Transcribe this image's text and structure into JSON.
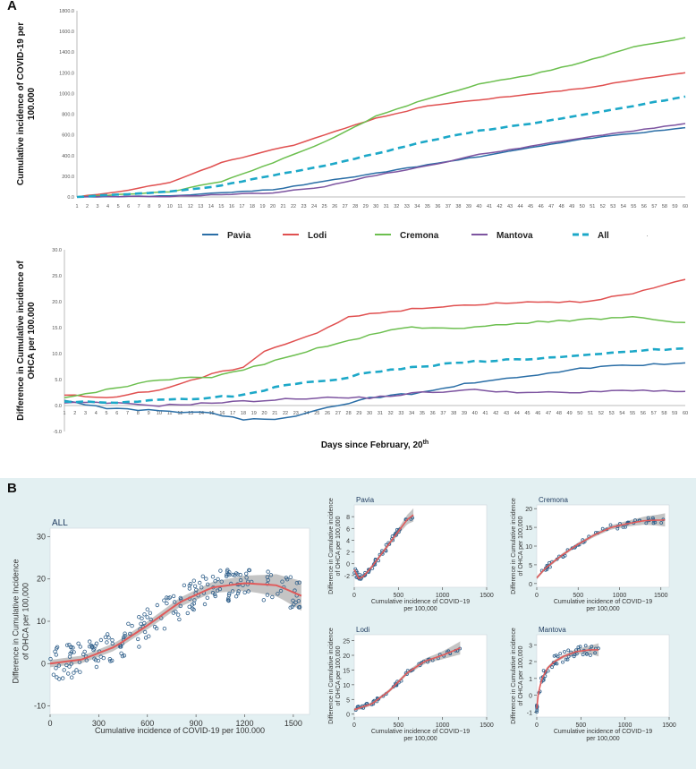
{
  "panel_labels": {
    "a": "A",
    "b": "B"
  },
  "chart_data": [
    {
      "id": "A1",
      "type": "line",
      "title": "",
      "xlabel": "",
      "ylabel": "Cumulative incidence of COVID-19 per 100.000",
      "ylim": [
        0,
        1800
      ],
      "yticks": [
        "0.0",
        "200.0",
        "400.0",
        "600.0",
        "800.0",
        "1000.0",
        "1200.0",
        "1400.0",
        "1600.0",
        "1800.0"
      ],
      "x_start": 1,
      "x_end": 60,
      "series_key_points": {
        "Pavia": [
          [
            1,
            0
          ],
          [
            10,
            10
          ],
          [
            20,
            70
          ],
          [
            30,
            230
          ],
          [
            40,
            390
          ],
          [
            50,
            560
          ],
          [
            60,
            670
          ]
        ],
        "Lodi": [
          [
            1,
            0
          ],
          [
            5,
            50
          ],
          [
            10,
            140
          ],
          [
            15,
            330
          ],
          [
            20,
            460
          ],
          [
            22,
            500
          ],
          [
            25,
            600
          ],
          [
            30,
            760
          ],
          [
            35,
            880
          ],
          [
            40,
            940
          ],
          [
            50,
            1050
          ],
          [
            55,
            1130
          ],
          [
            60,
            1200
          ]
        ],
        "Cremona": [
          [
            1,
            0
          ],
          [
            10,
            50
          ],
          [
            15,
            150
          ],
          [
            20,
            330
          ],
          [
            25,
            530
          ],
          [
            30,
            780
          ],
          [
            35,
            950
          ],
          [
            40,
            1090
          ],
          [
            45,
            1180
          ],
          [
            50,
            1300
          ],
          [
            55,
            1450
          ],
          [
            60,
            1540
          ]
        ],
        "Mantova": [
          [
            1,
            0
          ],
          [
            10,
            5
          ],
          [
            20,
            40
          ],
          [
            25,
            100
          ],
          [
            30,
            210
          ],
          [
            35,
            300
          ],
          [
            40,
            410
          ],
          [
            45,
            490
          ],
          [
            50,
            570
          ],
          [
            55,
            640
          ],
          [
            60,
            710
          ]
        ],
        "All": [
          [
            1,
            0
          ],
          [
            10,
            50
          ],
          [
            15,
            110
          ],
          [
            20,
            210
          ],
          [
            25,
            300
          ],
          [
            30,
            420
          ],
          [
            35,
            540
          ],
          [
            40,
            640
          ],
          [
            45,
            710
          ],
          [
            50,
            790
          ],
          [
            55,
            880
          ],
          [
            60,
            970
          ]
        ]
      }
    },
    {
      "id": "A2",
      "type": "line",
      "title": "",
      "xlabel": "Days since February, 20th",
      "ylabel": "Difference in Cumulative incidence of OHCA per 100.000",
      "ylim": [
        -5,
        30
      ],
      "yticks": [
        "-5.0",
        "0.0",
        "5.0",
        "10.0",
        "15.0",
        "20.0",
        "25.0",
        "30.0"
      ],
      "x_start": 1,
      "x_end": 60,
      "series_key_points": {
        "Pavia": [
          [
            1,
            1
          ],
          [
            5,
            -0.5
          ],
          [
            10,
            -1
          ],
          [
            15,
            -1.5
          ],
          [
            18,
            -2.7
          ],
          [
            22,
            -2.5
          ],
          [
            25,
            -1
          ],
          [
            30,
            1.5
          ],
          [
            35,
            2.5
          ],
          [
            40,
            4.5
          ],
          [
            45,
            5.5
          ],
          [
            50,
            7.2
          ],
          [
            55,
            7.8
          ],
          [
            60,
            8.2
          ]
        ],
        "Lodi": [
          [
            1,
            2
          ],
          [
            5,
            1.5
          ],
          [
            10,
            3
          ],
          [
            15,
            6
          ],
          [
            18,
            7.5
          ],
          [
            20,
            10.5
          ],
          [
            25,
            14
          ],
          [
            28,
            17
          ],
          [
            32,
            18.2
          ],
          [
            40,
            19.5
          ],
          [
            45,
            20
          ],
          [
            50,
            20
          ],
          [
            55,
            21.5
          ],
          [
            60,
            24.3
          ]
        ],
        "Cremona": [
          [
            1,
            1.5
          ],
          [
            5,
            3
          ],
          [
            10,
            5
          ],
          [
            15,
            5.5
          ],
          [
            20,
            8
          ],
          [
            25,
            11
          ],
          [
            30,
            13.5
          ],
          [
            33,
            15
          ],
          [
            40,
            15
          ],
          [
            45,
            16
          ],
          [
            50,
            16.5
          ],
          [
            55,
            17
          ],
          [
            60,
            16
          ]
        ],
        "Mantova": [
          [
            1,
            0.5
          ],
          [
            5,
            0.5
          ],
          [
            10,
            0
          ],
          [
            15,
            0.5
          ],
          [
            20,
            1
          ],
          [
            25,
            1.5
          ],
          [
            30,
            1.5
          ],
          [
            35,
            2.5
          ],
          [
            40,
            3
          ],
          [
            45,
            2.5
          ],
          [
            50,
            2.5
          ],
          [
            55,
            3
          ],
          [
            60,
            2.7
          ]
        ],
        "All": [
          [
            1,
            0.8
          ],
          [
            5,
            0.5
          ],
          [
            10,
            1
          ],
          [
            15,
            1.5
          ],
          [
            18,
            2
          ],
          [
            22,
            4
          ],
          [
            27,
            5
          ],
          [
            30,
            6.5
          ],
          [
            35,
            7.5
          ],
          [
            40,
            8.5
          ],
          [
            45,
            9
          ],
          [
            50,
            9.5
          ],
          [
            55,
            10.5
          ],
          [
            60,
            11
          ]
        ]
      }
    },
    {
      "id": "B-ALL",
      "type": "scatter",
      "title": "ALL",
      "xlabel": "Cumulative incidence of COVID-19 per 100.000",
      "ylabel": "Difference in Cumulative Incidence of OHCA per 100,000",
      "xlim": [
        0,
        1600
      ],
      "ylim": [
        -12,
        32
      ],
      "xticks": [
        0,
        300,
        600,
        900,
        1200,
        1500
      ],
      "yticks": [
        -10,
        0,
        10,
        20,
        30
      ],
      "fit": [
        [
          0,
          0
        ],
        [
          200,
          1
        ],
        [
          400,
          4
        ],
        [
          600,
          9
        ],
        [
          800,
          14.5
        ],
        [
          1000,
          18
        ],
        [
          1200,
          19
        ],
        [
          1400,
          18.5
        ],
        [
          1550,
          16
        ]
      ]
    },
    {
      "id": "B-Pavia",
      "type": "scatter",
      "title": "Pavia",
      "xlabel": "Cumulative incidence of COVID-19 per 100,000",
      "ylabel": "Difference in Cumulative incidence of OHCA per 100,000",
      "xlim": [
        0,
        1500
      ],
      "ylim": [
        -4,
        10
      ],
      "xticks": [
        0,
        500,
        1000,
        1500
      ],
      "yticks": [
        -2,
        0,
        2,
        4,
        6,
        8
      ],
      "fit": [
        [
          0,
          -1
        ],
        [
          50,
          -2.5
        ],
        [
          100,
          -2.2
        ],
        [
          200,
          -0.5
        ],
        [
          300,
          1.5
        ],
        [
          400,
          3.5
        ],
        [
          500,
          5.5
        ],
        [
          600,
          7.5
        ],
        [
          670,
          8.3
        ]
      ]
    },
    {
      "id": "B-Cremona",
      "type": "scatter",
      "title": "Cremona",
      "xlabel": "Cumulative incidence of COVID-19 per 100,000",
      "ylabel": "Difference in Cumulative incidence of OHCA per 100,000",
      "xlim": [
        0,
        1600
      ],
      "ylim": [
        -1,
        21
      ],
      "xticks": [
        0,
        500,
        1000,
        1500
      ],
      "yticks": [
        0,
        5,
        10,
        15,
        20
      ],
      "fit": [
        [
          0,
          1.5
        ],
        [
          100,
          4
        ],
        [
          300,
          7.5
        ],
        [
          500,
          10.5
        ],
        [
          700,
          13
        ],
        [
          900,
          15
        ],
        [
          1100,
          16
        ],
        [
          1300,
          16.8
        ],
        [
          1550,
          17
        ]
      ]
    },
    {
      "id": "B-Lodi",
      "type": "scatter",
      "title": "Lodi",
      "xlabel": "Cumulative incidence of COVID-19 per 100,000",
      "ylabel": "Difference in Cumulative incidence of OHCA per 100,000",
      "xlim": [
        0,
        1500
      ],
      "ylim": [
        -1,
        27
      ],
      "xticks": [
        0,
        500,
        1000,
        1500
      ],
      "yticks": [
        0,
        5,
        10,
        15,
        20,
        25
      ],
      "fit": [
        [
          0,
          1.5
        ],
        [
          200,
          3.5
        ],
        [
          400,
          8
        ],
        [
          600,
          14
        ],
        [
          800,
          18
        ],
        [
          1000,
          20
        ],
        [
          1200,
          22.5
        ]
      ]
    },
    {
      "id": "B-Mantova",
      "type": "scatter",
      "title": "Mantova",
      "xlabel": "Cumulative incidence of COVID-19 per 100,000",
      "ylabel": "Difference in Cumulative incidence of OHCA per 100,000",
      "xlim": [
        0,
        1500
      ],
      "ylim": [
        -1.3,
        3.6
      ],
      "xticks": [
        0,
        500,
        1000,
        1500
      ],
      "yticks": [
        -1,
        0,
        1,
        2,
        3
      ],
      "fit": [
        [
          0,
          -0.8
        ],
        [
          20,
          0.2
        ],
        [
          60,
          1
        ],
        [
          120,
          1.6
        ],
        [
          200,
          2
        ],
        [
          300,
          2.3
        ],
        [
          450,
          2.6
        ],
        [
          600,
          2.7
        ],
        [
          700,
          2.7
        ]
      ]
    }
  ],
  "legend": [
    {
      "name": "Pavia",
      "color": "#2a6ea6",
      "dashed": false
    },
    {
      "name": "Lodi",
      "color": "#e05050",
      "dashed": false
    },
    {
      "name": "Cremona",
      "color": "#6cbf4f",
      "dashed": false
    },
    {
      "name": "Mantova",
      "color": "#7d54a0",
      "dashed": false
    },
    {
      "name": "All",
      "color": "#1ca8c8",
      "dashed": true
    }
  ],
  "colors": {
    "fit": "#e05a5a",
    "ci": "#b5b5b5",
    "points": "#2f5f8a",
    "panelB_bg": "#e3f0f2"
  }
}
